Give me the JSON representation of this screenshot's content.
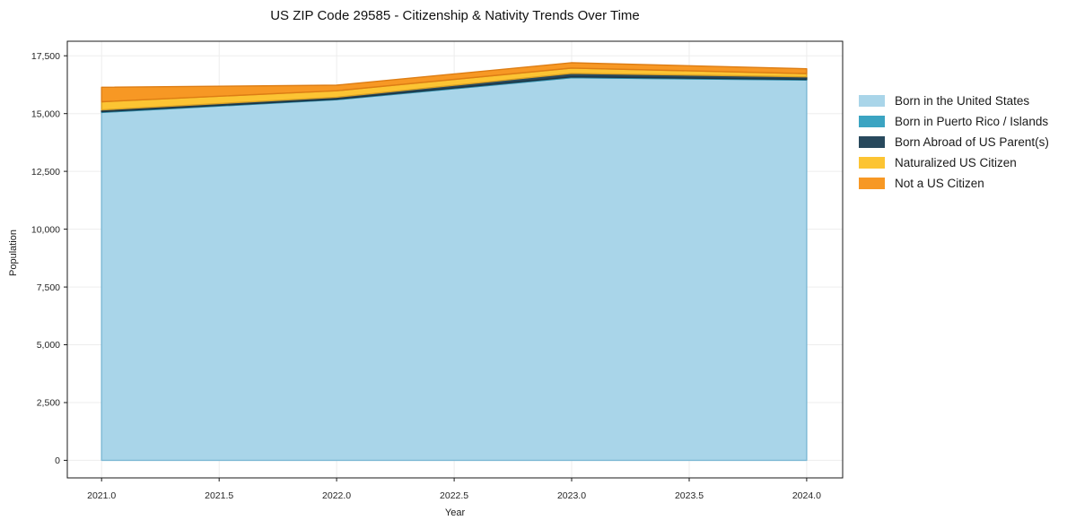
{
  "chart_data": {
    "type": "area",
    "stacked": true,
    "title": "US ZIP Code 29585 - Citizenship & Nativity Trends Over Time",
    "xlabel": "Year",
    "ylabel": "Population",
    "x": [
      2021,
      2022,
      2023,
      2024
    ],
    "series": [
      {
        "name": "Born in the United States",
        "color": "#a9d5e9",
        "edge_color": "#7cb8d4",
        "values": [
          15050,
          15600,
          16550,
          16450
        ]
      },
      {
        "name": "Born in Puerto Rico / Islands",
        "color": "#3ba4c2",
        "edge_color": "#2e89a5",
        "values": [
          30,
          30,
          40,
          30
        ]
      },
      {
        "name": "Born Abroad of US Parent(s)",
        "color": "#28495d",
        "edge_color": "#1b3443",
        "values": [
          80,
          80,
          150,
          110
        ]
      },
      {
        "name": "Naturalized US Citizen",
        "color": "#fcc433",
        "edge_color": "#d9a025",
        "values": [
          350,
          280,
          230,
          140
        ]
      },
      {
        "name": "Not a US Citizen",
        "color": "#f79824",
        "edge_color": "#dd7d14",
        "values": [
          630,
          240,
          230,
          210
        ]
      }
    ],
    "xlim": [
      2020.854,
      2024.153
    ],
    "ylim": [
      -760,
      18130
    ],
    "xticks": {
      "values": [
        2021.0,
        2021.5,
        2022.0,
        2022.5,
        2023.0,
        2023.5,
        2024.0
      ],
      "labels": [
        "2021.0",
        "2021.5",
        "2022.0",
        "2022.5",
        "2023.0",
        "2023.5",
        "2024.0"
      ]
    },
    "yticks": {
      "values": [
        0,
        2500,
        5000,
        7500,
        10000,
        12500,
        15000,
        17500
      ],
      "labels": [
        "0",
        "2,500",
        "5,000",
        "7,500",
        "10,000",
        "12,500",
        "15,000",
        "17,500"
      ]
    },
    "grid": true,
    "grid_color": "#ededed",
    "spine_color": "#1a1a1a",
    "legend_position": "right-outside"
  }
}
